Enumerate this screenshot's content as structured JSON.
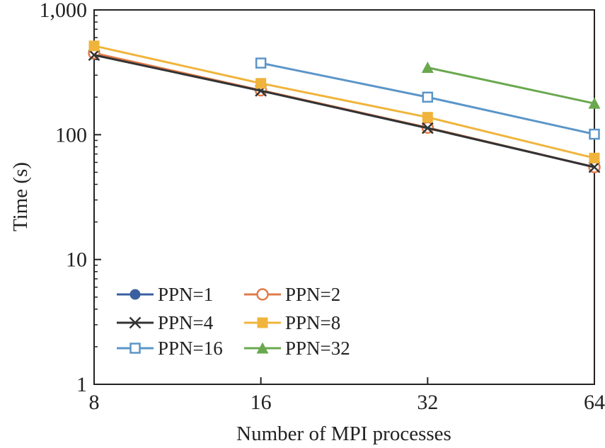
{
  "chart_data": {
    "type": "line",
    "xlabel": "Number of MPI processes",
    "ylabel": "Time (s)",
    "x_scale": "log2",
    "y_scale": "log10",
    "xlim": [
      8,
      64
    ],
    "ylim": [
      1,
      1000
    ],
    "x_ticks": [
      8,
      16,
      32,
      64
    ],
    "x_tick_labels": [
      "8",
      "16",
      "32",
      "64"
    ],
    "y_ticks": [
      1,
      10,
      100,
      1000
    ],
    "y_tick_labels": [
      "1",
      "10",
      "100",
      "1,000"
    ],
    "grid": false,
    "legend_position": "bottom-left",
    "series": [
      {
        "name": "PPN=1",
        "color": "#3a5fa0",
        "marker": "filled-circle",
        "x": [
          8,
          16,
          32,
          64
        ],
        "y": [
          440,
          225,
          113,
          55
        ]
      },
      {
        "name": "PPN=2",
        "color": "#e07b4a",
        "marker": "open-circle",
        "x": [
          8,
          16,
          32,
          64
        ],
        "y": [
          450,
          227,
          114,
          55
        ]
      },
      {
        "name": "PPN=4",
        "color": "#333333",
        "marker": "x",
        "x": [
          8,
          16,
          32,
          64
        ],
        "y": [
          435,
          225,
          113,
          55
        ]
      },
      {
        "name": "PPN=8",
        "color": "#f0b43c",
        "marker": "filled-square",
        "x": [
          8,
          16,
          32,
          64
        ],
        "y": [
          515,
          258,
          138,
          65
        ]
      },
      {
        "name": "PPN=16",
        "color": "#5b95c8",
        "marker": "open-square",
        "x": [
          16,
          32,
          64
        ],
        "y": [
          375,
          200,
          101
        ]
      },
      {
        "name": "PPN=32",
        "color": "#6aa84f",
        "marker": "filled-triangle",
        "x": [
          32,
          64
        ],
        "y": [
          345,
          178
        ]
      }
    ]
  }
}
